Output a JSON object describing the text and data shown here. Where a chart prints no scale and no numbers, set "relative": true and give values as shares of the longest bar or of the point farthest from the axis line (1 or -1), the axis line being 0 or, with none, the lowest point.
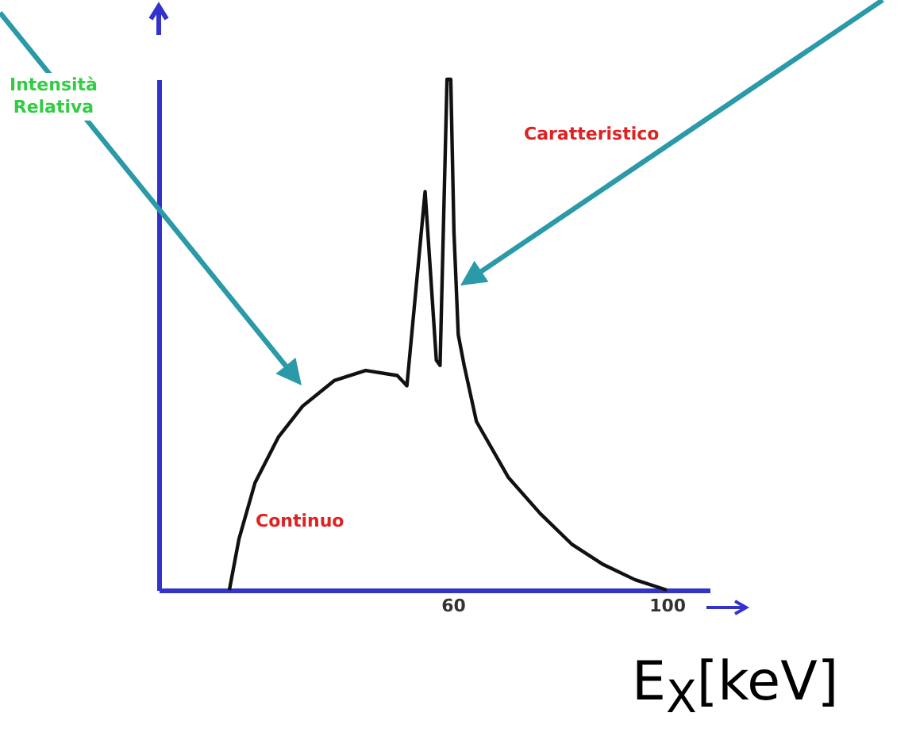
{
  "chart_data": {
    "type": "line",
    "relative": true,
    "xlabel": "E$_{X}$[keV]",
    "ylabel": "Intensità Relativa",
    "xlim": [
      5,
      108
    ],
    "xticks": [
      60,
      100
    ],
    "grid": false,
    "legend": false,
    "marker": "none",
    "line_style": "solid",
    "x": [
      18.2,
      20.0,
      23.0,
      27.4,
      31.9,
      37.8,
      43.7,
      49.6,
      51.4,
      54.8,
      56.9,
      57.6,
      58.9,
      59.6,
      60.2,
      61.0,
      62.1,
      64.4,
      70.4,
      76.3,
      82.2,
      88.1,
      94.1,
      100
    ],
    "series": [
      {
        "color": "#111111",
        "values": [
          0,
          0.1,
          0.21,
          0.3,
          0.36,
          0.41,
          0.43,
          0.42,
          0.4,
          0.78,
          0.45,
          0.44,
          1.0,
          1.0,
          0.7,
          0.5,
          0.44,
          0.33,
          0.22,
          0.15,
          0.09,
          0.05,
          0.02,
          0
        ]
      }
    ],
    "annotations": [
      "Caratteristico",
      "Continuo"
    ]
  }
}
